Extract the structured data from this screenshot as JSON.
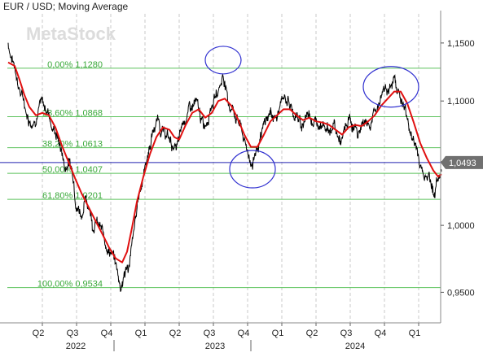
{
  "header": {
    "title": "EUR / USD; Moving Average"
  },
  "watermark": "MetaStock",
  "chart_data": {
    "type": "line",
    "title": "EUR / USD; Moving Average",
    "series": [
      {
        "name": "EUR / USD",
        "color": "#000000",
        "values": []
      },
      {
        "name": "Moving Average",
        "color": "#e01010",
        "values": []
      }
    ],
    "price_path": [
      [
        0.0,
        1.15
      ],
      [
        0.02,
        1.138
      ],
      [
        0.05,
        1.125
      ],
      [
        0.07,
        1.11
      ],
      [
        0.1,
        1.098
      ],
      [
        0.12,
        1.088
      ],
      [
        0.15,
        1.083
      ],
      [
        0.18,
        1.092
      ],
      [
        0.2,
        1.098
      ],
      [
        0.23,
        1.093
      ],
      [
        0.25,
        1.092
      ],
      [
        0.27,
        1.078
      ],
      [
        0.3,
        1.072
      ],
      [
        0.32,
        1.062
      ],
      [
        0.34,
        1.053
      ],
      [
        0.35,
        1.044
      ],
      [
        0.37,
        1.052
      ],
      [
        0.4,
        1.04
      ],
      [
        0.42,
        1.018
      ],
      [
        0.45,
        1.01
      ],
      [
        0.47,
        1.019
      ],
      [
        0.5,
        1.016
      ],
      [
        0.52,
        1.002
      ],
      [
        0.54,
        1.004
      ],
      [
        0.56,
        0.998
      ],
      [
        0.59,
        0.99
      ],
      [
        0.61,
        0.985
      ],
      [
        0.64,
        0.978
      ],
      [
        0.66,
        0.97
      ],
      [
        0.69,
        0.955
      ],
      [
        0.71,
        0.962
      ],
      [
        0.74,
        0.97
      ],
      [
        0.77,
        0.99
      ],
      [
        0.8,
        1.022
      ],
      [
        0.83,
        1.04
      ],
      [
        0.86,
        1.058
      ],
      [
        0.89,
        1.075
      ],
      [
        0.92,
        1.085
      ],
      [
        0.95,
        1.073
      ],
      [
        0.98,
        1.07
      ],
      [
        1.01,
        1.063
      ],
      [
        1.03,
        1.06
      ],
      [
        1.05,
        1.065
      ],
      [
        1.07,
        1.08
      ],
      [
        1.1,
        1.09
      ],
      [
        1.12,
        1.093
      ],
      [
        1.15,
        1.098
      ],
      [
        1.17,
        1.09
      ],
      [
        1.2,
        1.078
      ],
      [
        1.22,
        1.085
      ],
      [
        1.24,
        1.098
      ],
      [
        1.27,
        1.103
      ],
      [
        1.3,
        1.113
      ],
      [
        1.32,
        1.122
      ],
      [
        1.33,
        1.118
      ],
      [
        1.35,
        1.098
      ],
      [
        1.38,
        1.093
      ],
      [
        1.4,
        1.088
      ],
      [
        1.43,
        1.078
      ],
      [
        1.45,
        1.065
      ],
      [
        1.48,
        1.055
      ],
      [
        1.5,
        1.048
      ],
      [
        1.52,
        1.06
      ],
      [
        1.55,
        1.065
      ],
      [
        1.57,
        1.078
      ],
      [
        1.6,
        1.088
      ],
      [
        1.62,
        1.09
      ],
      [
        1.65,
        1.085
      ],
      [
        1.67,
        1.095
      ],
      [
        1.7,
        1.105
      ],
      [
        1.72,
        1.1
      ],
      [
        1.75,
        1.09
      ],
      [
        1.77,
        1.088
      ],
      [
        1.8,
        1.078
      ],
      [
        1.82,
        1.085
      ],
      [
        1.85,
        1.092
      ],
      [
        1.87,
        1.085
      ],
      [
        1.9,
        1.08
      ],
      [
        1.92,
        1.085
      ],
      [
        1.95,
        1.082
      ],
      [
        1.97,
        1.075
      ],
      [
        2.0,
        1.08
      ],
      [
        2.02,
        1.07
      ],
      [
        2.05,
        1.065
      ],
      [
        2.07,
        1.075
      ],
      [
        2.1,
        1.085
      ],
      [
        2.12,
        1.078
      ],
      [
        2.15,
        1.072
      ],
      [
        2.17,
        1.08
      ],
      [
        2.2,
        1.085
      ],
      [
        2.22,
        1.08
      ],
      [
        2.25,
        1.09
      ],
      [
        2.27,
        1.095
      ],
      [
        2.3,
        1.11
      ],
      [
        2.32,
        1.115
      ],
      [
        2.35,
        1.108
      ],
      [
        2.37,
        1.118
      ],
      [
        2.39,
        1.112
      ],
      [
        2.42,
        1.098
      ],
      [
        2.44,
        1.09
      ],
      [
        2.46,
        1.08
      ],
      [
        2.48,
        1.068
      ],
      [
        2.51,
        1.06
      ],
      [
        2.53,
        1.048
      ],
      [
        2.55,
        1.038
      ],
      [
        2.57,
        1.045
      ],
      [
        2.6,
        1.032
      ],
      [
        2.62,
        1.026
      ],
      [
        2.64,
        1.038
      ],
      [
        2.66,
        1.043
      ]
    ],
    "ma_path": [
      [
        0.0,
        1.133
      ],
      [
        0.04,
        1.13
      ],
      [
        0.07,
        1.118
      ],
      [
        0.1,
        1.105
      ],
      [
        0.13,
        1.095
      ],
      [
        0.17,
        1.088
      ],
      [
        0.21,
        1.09
      ],
      [
        0.25,
        1.088
      ],
      [
        0.29,
        1.078
      ],
      [
        0.33,
        1.063
      ],
      [
        0.37,
        1.05
      ],
      [
        0.41,
        1.037
      ],
      [
        0.45,
        1.025
      ],
      [
        0.49,
        1.015
      ],
      [
        0.53,
        1.005
      ],
      [
        0.58,
        0.993
      ],
      [
        0.62,
        0.983
      ],
      [
        0.66,
        0.975
      ],
      [
        0.7,
        0.972
      ],
      [
        0.73,
        0.98
      ],
      [
        0.76,
        0.998
      ],
      [
        0.79,
        1.018
      ],
      [
        0.83,
        1.038
      ],
      [
        0.87,
        1.056
      ],
      [
        0.91,
        1.07
      ],
      [
        0.95,
        1.078
      ],
      [
        0.99,
        1.076
      ],
      [
        1.02,
        1.07
      ],
      [
        1.05,
        1.068
      ],
      [
        1.09,
        1.08
      ],
      [
        1.13,
        1.09
      ],
      [
        1.17,
        1.093
      ],
      [
        1.21,
        1.086
      ],
      [
        1.25,
        1.09
      ],
      [
        1.29,
        1.1
      ],
      [
        1.33,
        1.102
      ],
      [
        1.37,
        1.096
      ],
      [
        1.41,
        1.085
      ],
      [
        1.45,
        1.072
      ],
      [
        1.49,
        1.062
      ],
      [
        1.53,
        1.062
      ],
      [
        1.57,
        1.072
      ],
      [
        1.61,
        1.083
      ],
      [
        1.65,
        1.088
      ],
      [
        1.69,
        1.093
      ],
      [
        1.73,
        1.093
      ],
      [
        1.77,
        1.088
      ],
      [
        1.81,
        1.084
      ],
      [
        1.85,
        1.086
      ],
      [
        1.89,
        1.083
      ],
      [
        1.93,
        1.082
      ],
      [
        1.97,
        1.08
      ],
      [
        2.01,
        1.076
      ],
      [
        2.05,
        1.072
      ],
      [
        2.09,
        1.078
      ],
      [
        2.13,
        1.08
      ],
      [
        2.17,
        1.079
      ],
      [
        2.21,
        1.083
      ],
      [
        2.25,
        1.088
      ],
      [
        2.29,
        1.096
      ],
      [
        2.33,
        1.102
      ],
      [
        2.37,
        1.108
      ],
      [
        2.41,
        1.108
      ],
      [
        2.45,
        1.098
      ],
      [
        2.49,
        1.082
      ],
      [
        2.53,
        1.065
      ],
      [
        2.57,
        1.053
      ],
      [
        2.61,
        1.043
      ],
      [
        2.64,
        1.038
      ],
      [
        2.66,
        1.04
      ]
    ],
    "ylim": [
      0.928,
      1.176
    ],
    "y_scale": "log",
    "y_ticks": [
      1.15,
      1.1,
      1.05,
      1.0,
      0.95
    ],
    "y_tick_labels": [
      "1,1500",
      "1,1000",
      "1,0500",
      "1,0000",
      "0,9500"
    ],
    "x_quarter_labels": [
      "Q2",
      "Q3",
      "Q4",
      "Q1",
      "Q2",
      "Q3",
      "Q4",
      "Q1",
      "Q2",
      "Q3",
      "Q4",
      "Q1"
    ],
    "x_year_labels": [
      {
        "label": "2022",
        "quarter_index": 1.5
      },
      {
        "label": "2023",
        "quarter_index": 5.5
      },
      {
        "label": "2024",
        "quarter_index": 9.5
      }
    ],
    "fibonacci_levels": [
      {
        "label": "0,00% 1,1280",
        "value": 1.128
      },
      {
        "label": "23,60% 1,0868",
        "value": 1.0868
      },
      {
        "label": "38,20% 1,0613",
        "value": 1.0613
      },
      {
        "label": "50,00% 1,0407",
        "value": 1.0407
      },
      {
        "label": "61,80% 1,0201",
        "value": 1.0201
      },
      {
        "label": "100,00% 0,9534",
        "value": 0.9534
      }
    ],
    "current_price": {
      "label": "1,0493",
      "value": 1.0493
    },
    "annotations": [
      {
        "shape": "ellipse",
        "quarter": 1.32,
        "price": 1.135,
        "note": "circled peak"
      },
      {
        "shape": "ellipse",
        "quarter": 1.5,
        "price": 1.044,
        "note": "circled trough"
      },
      {
        "shape": "ellipse",
        "quarter": 2.35,
        "price": 1.112,
        "note": "circled peak"
      }
    ],
    "grid": true,
    "colors": {
      "fib_line": "#5cc25c",
      "fib_label": "#3aa83a",
      "price_line": "#2020b0",
      "ellipse": "#3030d0",
      "ma": "#e01010",
      "price": "#000000",
      "grid": "#c8c8c8",
      "axis_text": "#222222",
      "tag_bg": "#707070"
    }
  }
}
